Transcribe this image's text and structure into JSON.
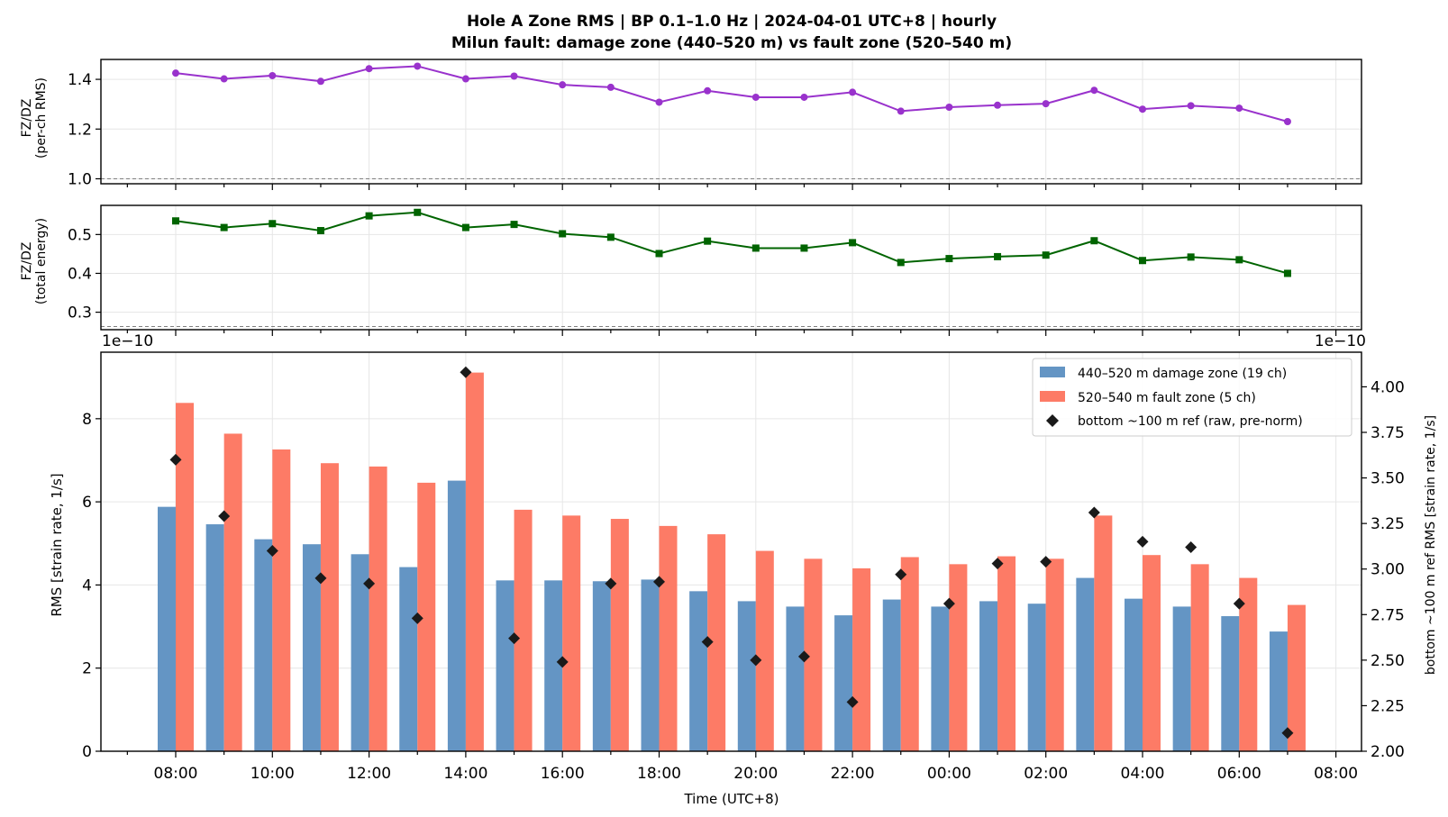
{
  "figure": {
    "title_line1": "Hole A Zone RMS  |  BP 0.1–1.0 Hz  |  2024-04-01 UTC+8  |  hourly",
    "title_line2": "Milun fault: damage zone (440–520 m) vs fault zone (520–540 m)"
  },
  "colors": {
    "ratio_rms": "#9932cc",
    "ratio_energy": "#006400",
    "damage_zone": "#6495c4",
    "fault_zone": "#fd7b66",
    "ref": "#1a1a1a",
    "grid": "#e6e6e6"
  },
  "chart_data": [
    {
      "type": "line",
      "ylabel_line1": "FZ/DZ",
      "ylabel_line2": "(per-ch RMS)",
      "x": [
        "08:00",
        "09:00",
        "10:00",
        "11:00",
        "12:00",
        "13:00",
        "14:00",
        "15:00",
        "16:00",
        "17:00",
        "18:00",
        "19:00",
        "20:00",
        "21:00",
        "22:00",
        "23:00",
        "00:00",
        "01:00",
        "02:00",
        "03:00",
        "04:00",
        "05:00",
        "06:00",
        "07:00"
      ],
      "values": [
        1.425,
        1.402,
        1.415,
        1.392,
        1.443,
        1.453,
        1.402,
        1.413,
        1.378,
        1.368,
        1.308,
        1.354,
        1.328,
        1.328,
        1.348,
        1.272,
        1.288,
        1.296,
        1.302,
        1.356,
        1.28,
        1.294,
        1.284,
        1.23
      ],
      "ylim": [
        0.98,
        1.48
      ],
      "yticks": [
        "1.0",
        "1.2",
        "1.4"
      ],
      "reference_line": 1.0,
      "grid": true
    },
    {
      "type": "line",
      "ylabel_line1": "FZ/DZ",
      "ylabel_line2": "(total energy)",
      "x": [
        "08:00",
        "09:00",
        "10:00",
        "11:00",
        "12:00",
        "13:00",
        "14:00",
        "15:00",
        "16:00",
        "17:00",
        "18:00",
        "19:00",
        "20:00",
        "21:00",
        "22:00",
        "23:00",
        "00:00",
        "01:00",
        "02:00",
        "03:00",
        "04:00",
        "05:00",
        "06:00",
        "07:00"
      ],
      "values": [
        0.535,
        0.518,
        0.528,
        0.51,
        0.548,
        0.557,
        0.518,
        0.526,
        0.502,
        0.493,
        0.451,
        0.483,
        0.465,
        0.465,
        0.479,
        0.428,
        0.438,
        0.443,
        0.447,
        0.484,
        0.433,
        0.442,
        0.435,
        0.4
      ],
      "ylim": [
        0.255,
        0.575
      ],
      "yticks": [
        "0.3",
        "0.4",
        "0.5"
      ],
      "reference_line": 0.263,
      "grid": true
    },
    {
      "type": "bar",
      "ylabel": "RMS  [strain rate, 1/s]",
      "y2label": "bottom ~100 m ref RMS  [strain rate, 1/s]",
      "xlabel": "Time (UTC+8)",
      "offset_left": "1e−10",
      "offset_right": "1e−10",
      "categories": [
        "08:00",
        "09:00",
        "10:00",
        "11:00",
        "12:00",
        "13:00",
        "14:00",
        "15:00",
        "16:00",
        "17:00",
        "18:00",
        "19:00",
        "20:00",
        "21:00",
        "22:00",
        "23:00",
        "00:00",
        "01:00",
        "02:00",
        "03:00",
        "04:00",
        "05:00",
        "06:00",
        "07:00"
      ],
      "xtick_labels": [
        "08:00",
        "10:00",
        "12:00",
        "14:00",
        "16:00",
        "18:00",
        "20:00",
        "22:00",
        "00:00",
        "02:00",
        "04:00",
        "06:00",
        "08:00"
      ],
      "series": [
        {
          "name": "440–520 m  damage zone (19 ch)",
          "values": [
            5.88,
            5.46,
            5.1,
            4.98,
            4.74,
            4.43,
            6.51,
            4.11,
            4.11,
            4.09,
            4.13,
            3.85,
            3.61,
            3.48,
            3.27,
            3.65,
            3.48,
            3.61,
            3.55,
            4.17,
            3.67,
            3.48,
            3.25,
            2.88
          ]
        },
        {
          "name": "520–540 m  fault zone (5 ch)",
          "values": [
            8.38,
            7.64,
            7.26,
            6.93,
            6.85,
            6.46,
            9.11,
            5.81,
            5.67,
            5.59,
            5.42,
            5.22,
            4.82,
            4.63,
            4.4,
            4.67,
            4.5,
            4.69,
            4.63,
            5.67,
            4.72,
            4.5,
            4.17,
            3.52
          ]
        }
      ],
      "ref_series": {
        "name": "bottom ~100 m ref (raw, pre-norm)",
        "values": [
          3.6,
          3.29,
          3.1,
          2.95,
          2.92,
          2.73,
          4.08,
          2.62,
          2.49,
          2.92,
          2.93,
          2.6,
          2.5,
          2.52,
          2.27,
          2.97,
          2.81,
          3.03,
          3.04,
          3.31,
          3.15,
          3.12,
          2.81,
          2.1
        ]
      },
      "ylim": [
        0,
        9.6
      ],
      "yticks": [
        "0",
        "2",
        "4",
        "6",
        "8"
      ],
      "y2lim": [
        2.0,
        4.19
      ],
      "y2ticks": [
        "2.00",
        "2.25",
        "2.50",
        "2.75",
        "3.00",
        "3.25",
        "3.50",
        "3.75",
        "4.00"
      ],
      "legend_position": "top-right",
      "grid": true
    }
  ]
}
